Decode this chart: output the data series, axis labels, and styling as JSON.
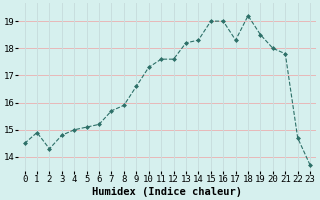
{
  "xlabel": "Humidex (Indice chaleur)",
  "ylabel": "",
  "x": [
    0,
    1,
    2,
    3,
    4,
    5,
    6,
    7,
    8,
    9,
    10,
    11,
    12,
    13,
    14,
    15,
    16,
    17,
    18,
    19,
    20,
    21,
    22,
    23
  ],
  "y": [
    14.5,
    14.9,
    14.3,
    14.8,
    15.0,
    15.1,
    15.2,
    15.7,
    15.9,
    16.6,
    17.3,
    17.6,
    17.6,
    18.2,
    18.3,
    19.0,
    19.0,
    18.3,
    19.2,
    18.5,
    18.0,
    17.8,
    14.7,
    13.7
  ],
  "line_color": "#2d7068",
  "marker": "D",
  "marker_size": 2.0,
  "bg_color": "#d6f0ee",
  "grid_color_h": "#e8b8b8",
  "grid_color_v": "#c8dede",
  "ylim": [
    13.5,
    19.65
  ],
  "xlim": [
    -0.5,
    23.5
  ],
  "yticks": [
    14,
    15,
    16,
    17,
    18,
    19
  ],
  "xticks": [
    0,
    1,
    2,
    3,
    4,
    5,
    6,
    7,
    8,
    9,
    10,
    11,
    12,
    13,
    14,
    15,
    16,
    17,
    18,
    19,
    20,
    21,
    22,
    23
  ],
  "tick_fontsize": 6.5,
  "xlabel_fontsize": 7.5
}
